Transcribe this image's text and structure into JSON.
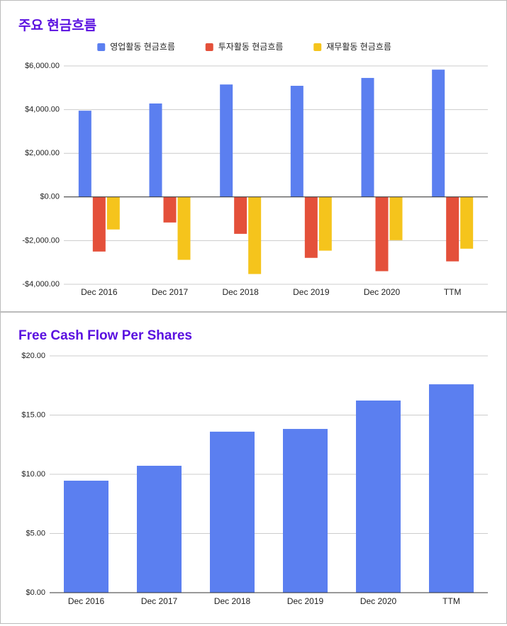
{
  "chart_data": [
    {
      "type": "bar",
      "title": "주요 현금흐름",
      "categories": [
        "Dec 2016",
        "Dec 2017",
        "Dec 2018",
        "Dec 2019",
        "Dec 2020",
        "TTM"
      ],
      "series": [
        {
          "name": "영업활동 현금흐름",
          "color": "#5b7ff0",
          "values": [
            3950,
            4280,
            5150,
            5090,
            5450,
            5830
          ]
        },
        {
          "name": "투자활동 현금흐름",
          "color": "#e4503a",
          "values": [
            -2500,
            -1170,
            -1690,
            -2790,
            -3400,
            -2950
          ]
        },
        {
          "name": "재무활동 현금흐름",
          "color": "#f5c41c",
          "values": [
            -1490,
            -2880,
            -3530,
            -2460,
            -1980,
            -2370
          ]
        }
      ],
      "ylim": [
        -4000,
        6000
      ],
      "yticks": [
        {
          "value": -4000,
          "label": "-$4,000.00"
        },
        {
          "value": -2000,
          "label": "-$2,000.00"
        },
        {
          "value": 0,
          "label": "$0.00"
        },
        {
          "value": 2000,
          "label": "$2,000.00"
        },
        {
          "value": 4000,
          "label": "$4,000.00"
        },
        {
          "value": 6000,
          "label": "$6,000.00"
        }
      ],
      "grid": true,
      "legend": "top"
    },
    {
      "type": "bar",
      "title": "Free Cash Flow Per Shares",
      "categories": [
        "Dec 2016",
        "Dec 2017",
        "Dec 2018",
        "Dec 2019",
        "Dec 2020",
        "TTM"
      ],
      "values": [
        9.46,
        10.72,
        13.6,
        13.83,
        16.23,
        17.6
      ],
      "color": "#5b7ff0",
      "ylim": [
        0,
        20
      ],
      "yticks": [
        {
          "value": 0,
          "label": "$0.00"
        },
        {
          "value": 5,
          "label": "$5.00"
        },
        {
          "value": 10,
          "label": "$10.00"
        },
        {
          "value": 15,
          "label": "$15.00"
        },
        {
          "value": 20,
          "label": "$20.00"
        }
      ],
      "grid": true
    }
  ]
}
